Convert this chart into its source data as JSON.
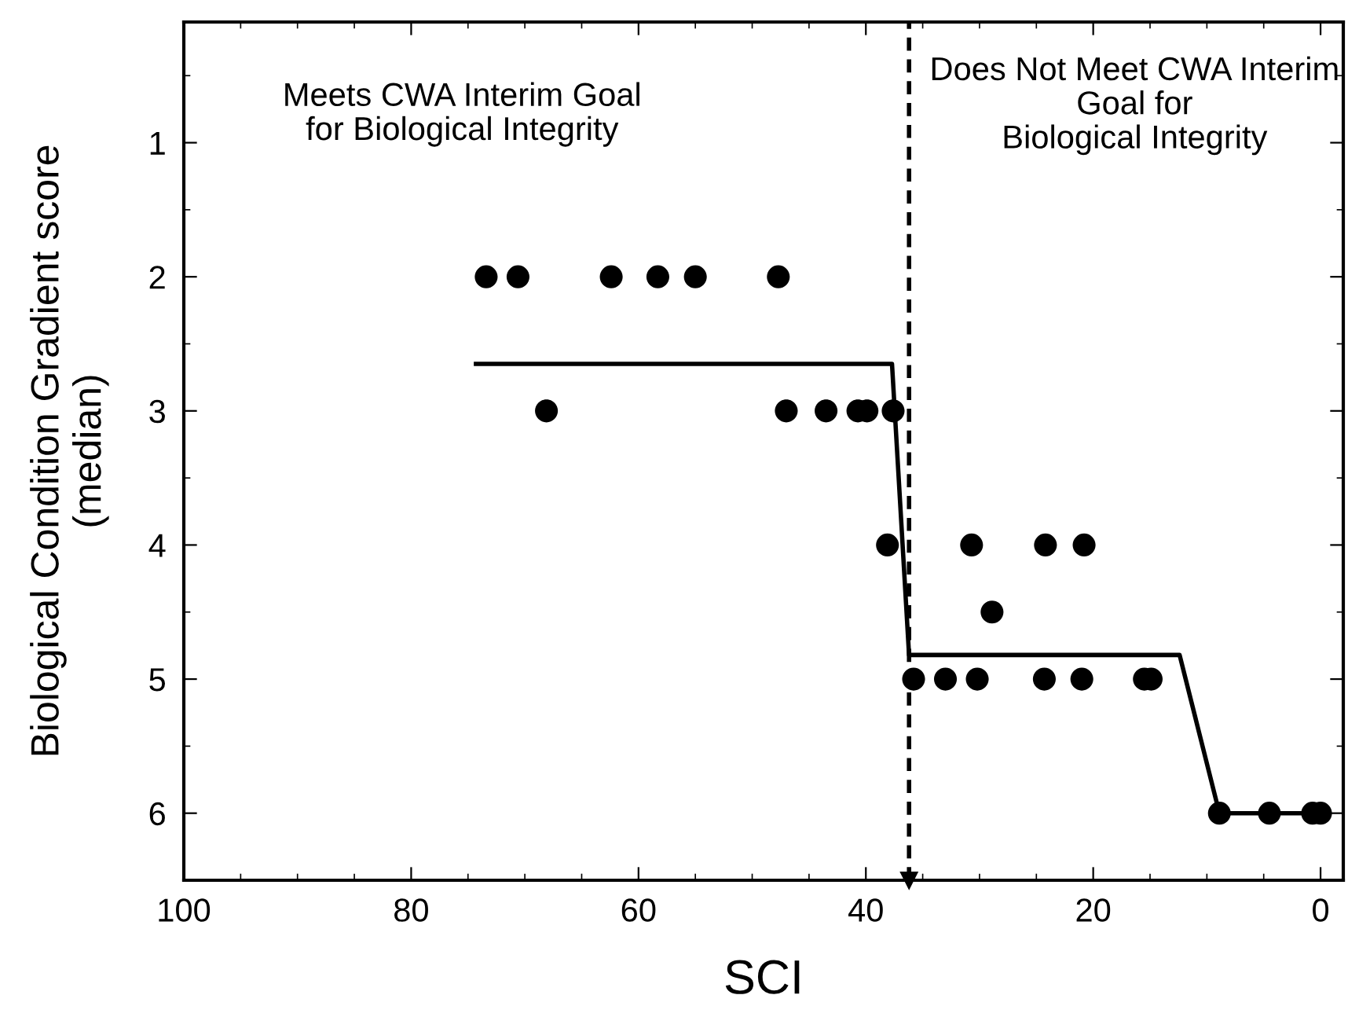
{
  "chart_data": {
    "type": "scatter",
    "xlabel": "SCI",
    "ylabel": "Biological Condition Gradient score\n(median)",
    "xlim": [
      100,
      -2
    ],
    "ylim": [
      6.5,
      0.1
    ],
    "xticks": [
      100,
      80,
      60,
      40,
      20,
      0
    ],
    "yticks": [
      1,
      2,
      3,
      4,
      5,
      6
    ],
    "grid": false,
    "legend": false,
    "marker": "circle",
    "series": [
      {
        "color": "#000000",
        "x": [
          73.4,
          70.6,
          62.4,
          58.3,
          55.0,
          47.7,
          68.1,
          47.0,
          43.5,
          40.7,
          39.9,
          37.6,
          38.1,
          30.7,
          24.2,
          20.8,
          28.9,
          35.8,
          33.0,
          30.2,
          24.3,
          21.0,
          15.5,
          14.9,
          8.9,
          4.5,
          0.7,
          0.0
        ],
        "values": [
          2,
          2,
          2,
          2,
          2,
          2,
          3,
          3,
          3,
          3,
          3,
          3,
          4,
          4,
          4,
          4,
          4.5,
          5,
          5,
          5,
          5,
          5,
          5,
          5,
          6,
          6,
          6,
          6
        ]
      },
      {
        "type": "line",
        "color": "#000000",
        "marker": "none",
        "line_style": "solid",
        "x": [
          74.3,
          37.7,
          36.2,
          12.4,
          8.9,
          0.0
        ],
        "values": [
          2.65,
          2.65,
          4.82,
          4.82,
          6,
          6
        ]
      }
    ],
    "ref_lines": [
      {
        "axis": "x",
        "value": 36.2,
        "label": null,
        "color": "#000000",
        "line_style": "dashed"
      }
    ],
    "annotations": [
      "Meets CWA Interim Goal\nfor Biological Integrity",
      "Does Not Meet CWA Interim\nGoal for\nBiological Integrity"
    ]
  }
}
